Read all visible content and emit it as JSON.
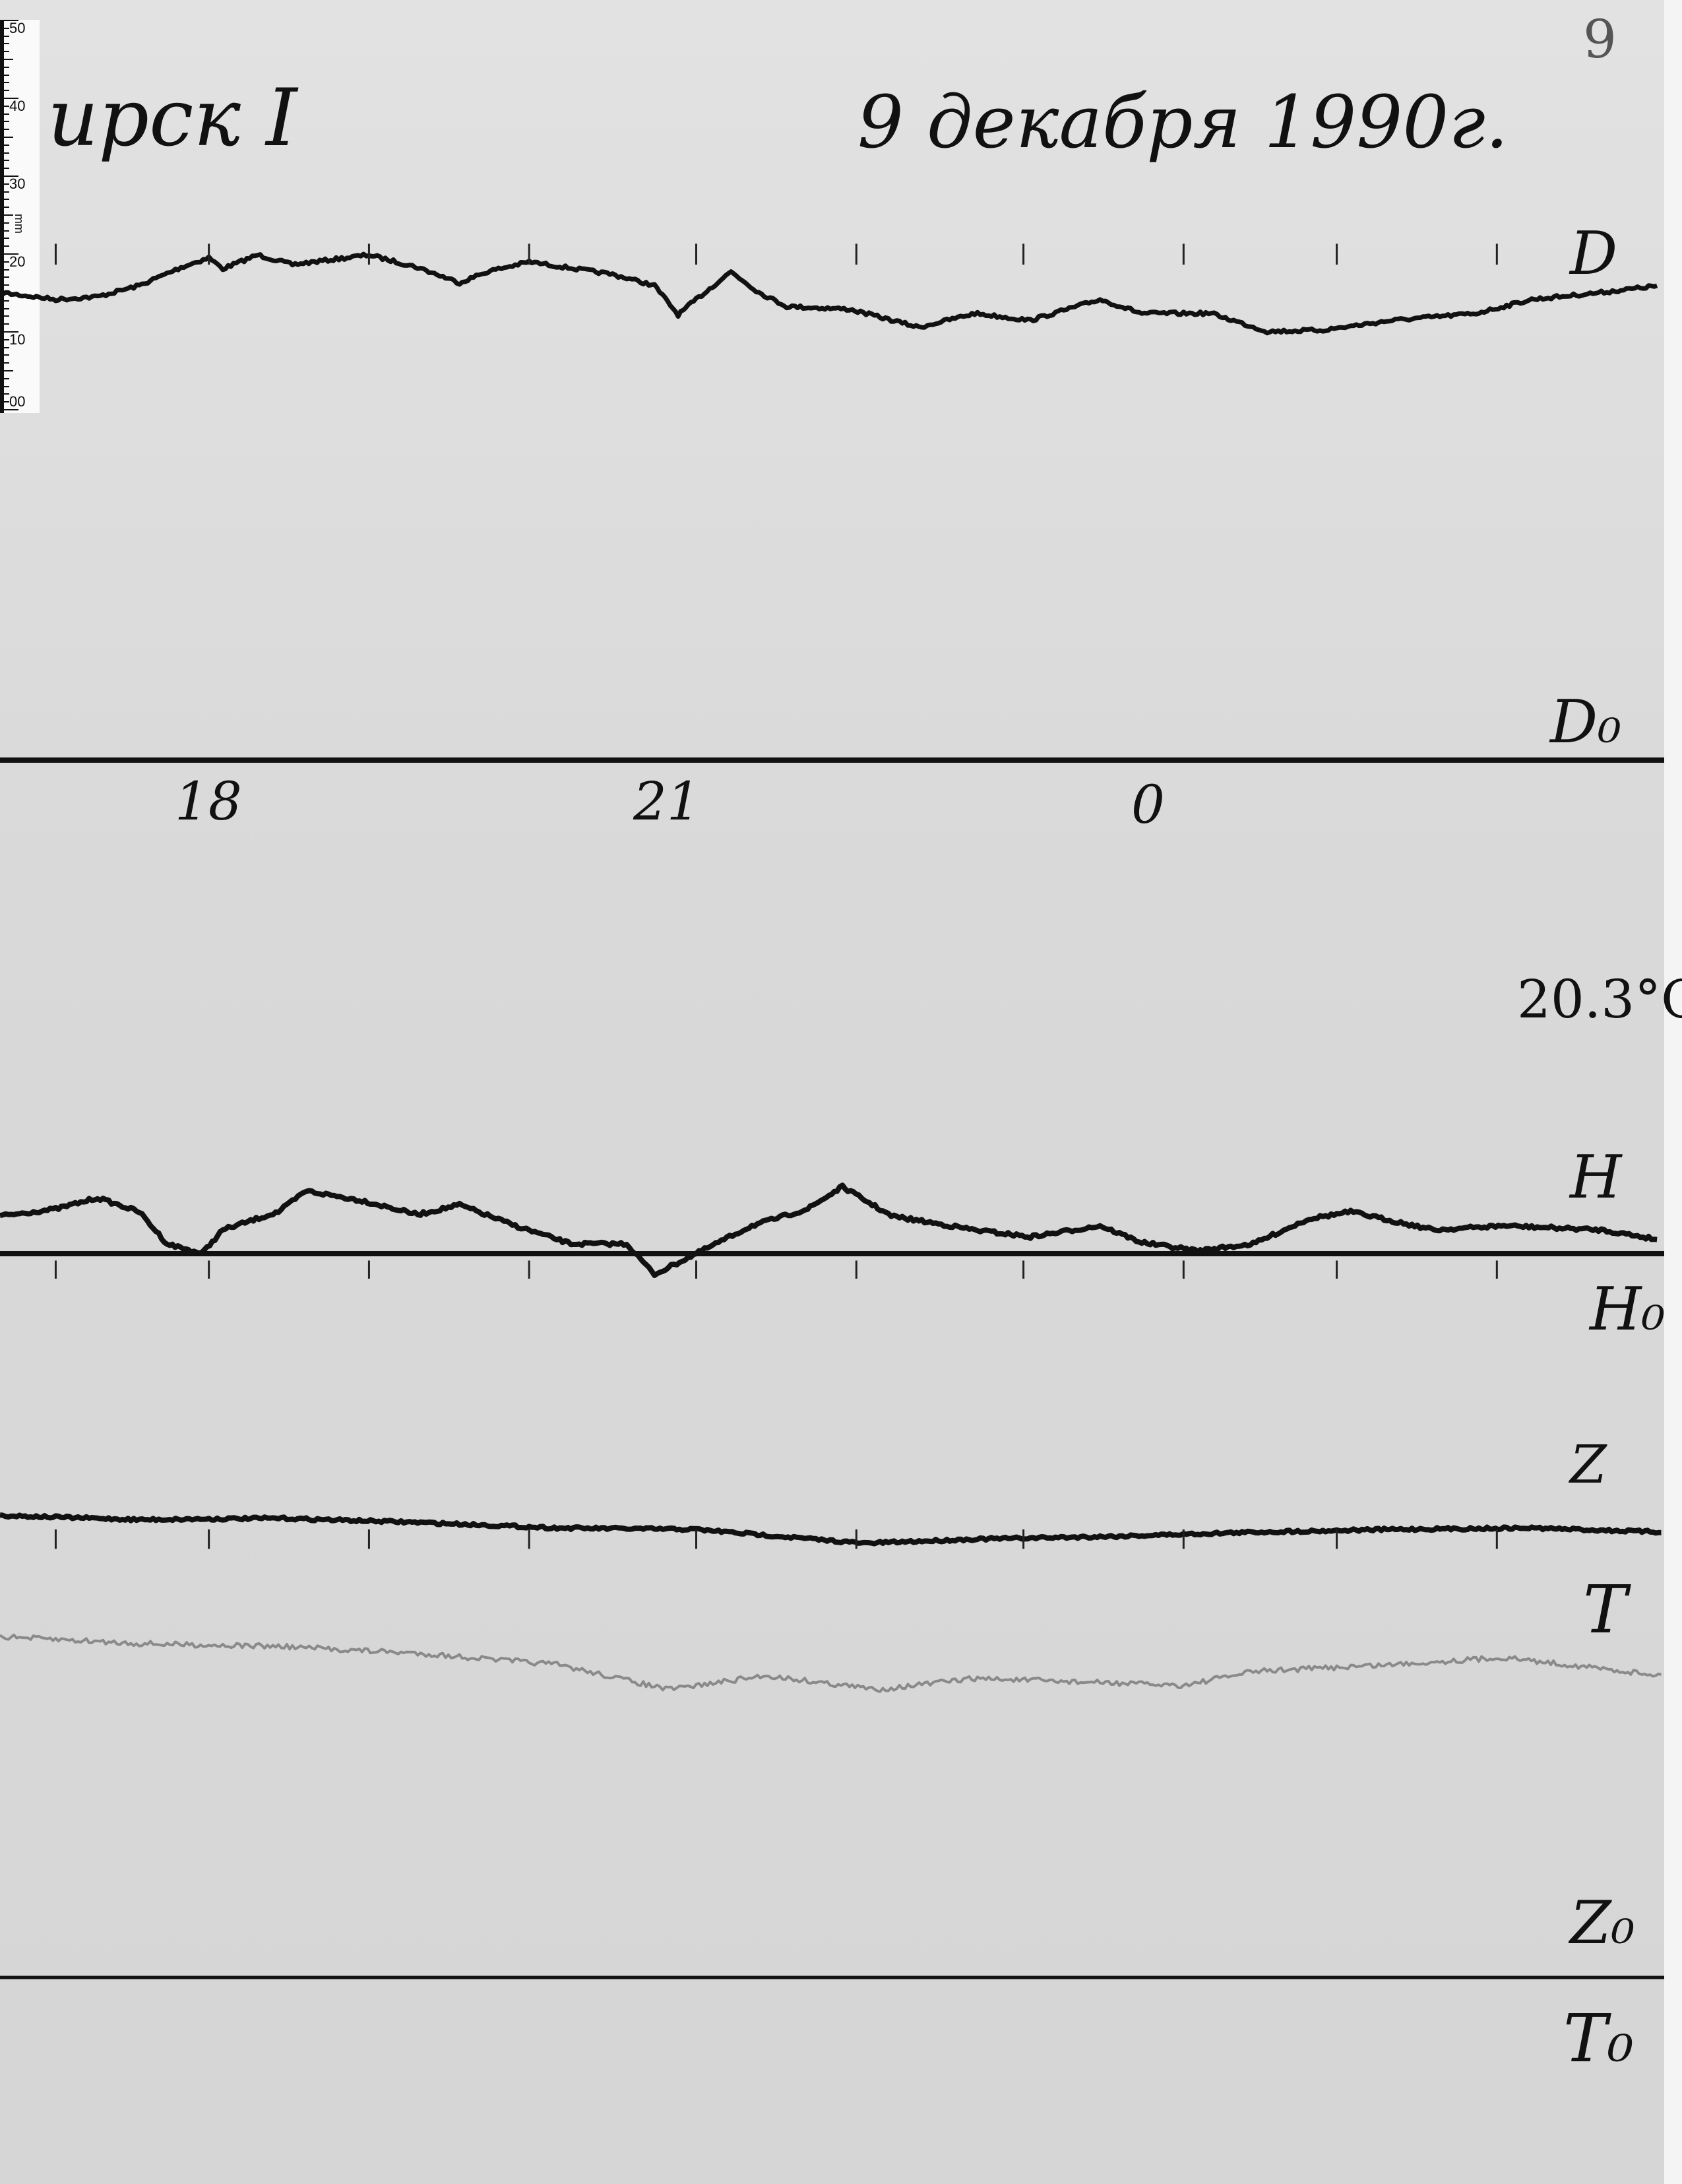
{
  "header": {
    "station": "ирск I",
    "date": "9 декабря 1990г.",
    "sheet_number": "9"
  },
  "ruler": {
    "unit": "mm",
    "labels": [
      "50",
      "40",
      "30",
      "20",
      "10",
      "00"
    ]
  },
  "traces": {
    "D": "D",
    "D0": "D₀",
    "H": "H",
    "H0": "H₀",
    "Z": "Z",
    "Z0": "Z₀",
    "T": "T",
    "T0": "T₀"
  },
  "time_marks": [
    "18",
    "21",
    "0"
  ],
  "temperature": "20.3°C",
  "colors": {
    "paper": "#dcdcdc",
    "ink": "#111111",
    "temperature_trace": "#8a8a8a"
  }
}
